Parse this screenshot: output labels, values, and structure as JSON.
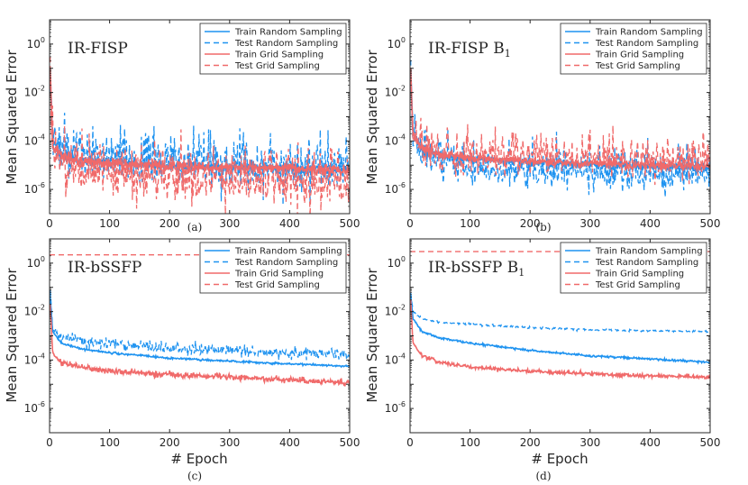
{
  "figure": {
    "ylabel": "Mean Squared Error",
    "xlabel": "# Epoch",
    "colors": {
      "random": "#1f93f0",
      "grid": "#f06a6a",
      "axis": "#262626"
    }
  },
  "chart_data": [
    {
      "type": "line",
      "panel": "a",
      "sublabel": "(a)",
      "title": "IR-FISP",
      "title_sub": "",
      "xlim": [
        0,
        500
      ],
      "xticks": [
        0,
        100,
        200,
        300,
        400,
        500
      ],
      "ylim_log10": [
        -7,
        1
      ],
      "yticks_exp": [
        -6,
        -4,
        -2,
        0
      ],
      "show_xlabel": false,
      "legend": [
        "Train Random Sampling",
        "Test Random Sampling",
        "Train Grid Sampling",
        "Test Grid Sampling"
      ],
      "series": [
        {
          "name": "Train Random Sampling",
          "color": "random",
          "dash": "",
          "x": [
            1,
            5,
            20,
            50,
            100,
            200,
            300,
            400,
            500
          ],
          "values": [
            0.06,
            0.0001,
            2.5e-05,
            1.7e-05,
            1.3e-05,
            1e-05,
            8.5e-06,
            7.5e-06,
            6.5e-06
          ],
          "noise": 0.08
        },
        {
          "name": "Test Random Sampling",
          "color": "random",
          "dash": "6,4",
          "x": [
            1,
            5,
            20,
            50,
            100,
            200,
            300,
            400,
            500
          ],
          "values": [
            0.08,
            0.0001,
            3e-05,
            2e-05,
            1.6e-05,
            1.2e-05,
            1e-05,
            8e-06,
            7e-06
          ],
          "noise": 0.45
        },
        {
          "name": "Train Grid Sampling",
          "color": "grid",
          "dash": "",
          "x": [
            1,
            5,
            20,
            50,
            100,
            200,
            300,
            400,
            500
          ],
          "values": [
            0.08,
            8e-05,
            2e-05,
            1.5e-05,
            1.2e-05,
            9.5e-06,
            8e-06,
            7e-06,
            6e-06
          ],
          "noise": 0.12
        },
        {
          "name": "Test Grid Sampling",
          "color": "grid",
          "dash": "6,4",
          "x": [
            1,
            5,
            20,
            50,
            100,
            200,
            300,
            400,
            500
          ],
          "values": [
            0.1,
            6e-05,
            1.2e-05,
            6e-06,
            4e-06,
            3e-06,
            2.5e-06,
            2.2e-06,
            2e-06
          ],
          "noise": 0.5
        }
      ]
    },
    {
      "type": "line",
      "panel": "b",
      "sublabel": "(b)",
      "title": "IR-FISP B",
      "title_sub": "1",
      "xlim": [
        0,
        500
      ],
      "xticks": [
        0,
        100,
        200,
        300,
        400,
        500
      ],
      "ylim_log10": [
        -7,
        1
      ],
      "yticks_exp": [
        -6,
        -4,
        -2,
        0
      ],
      "show_xlabel": false,
      "legend": [
        "Train Random Sampling",
        "Test Random Sampling",
        "Train Grid Sampling",
        "Test Grid Sampling"
      ],
      "series": [
        {
          "name": "Train Random Sampling",
          "color": "random",
          "dash": "",
          "x": [
            1,
            5,
            20,
            50,
            100,
            200,
            300,
            400,
            500
          ],
          "values": [
            0.1,
            0.0002,
            4e-05,
            2.5e-05,
            1.8e-05,
            1.3e-05,
            1.1e-05,
            9e-06,
            8e-06
          ],
          "noise": 0.08
        },
        {
          "name": "Test Random Sampling",
          "color": "random",
          "dash": "6,4",
          "x": [
            1,
            5,
            20,
            50,
            100,
            200,
            300,
            400,
            500
          ],
          "values": [
            0.1,
            0.00015,
            3e-05,
            1.6e-05,
            9e-06,
            6e-06,
            5e-06,
            4.5e-06,
            4e-06
          ],
          "noise": 0.35
        },
        {
          "name": "Train Grid Sampling",
          "color": "grid",
          "dash": "",
          "x": [
            1,
            5,
            20,
            50,
            100,
            200,
            300,
            400,
            500
          ],
          "values": [
            0.1,
            0.0002,
            4.5e-05,
            2.8e-05,
            2e-05,
            1.5e-05,
            1.2e-05,
            1e-05,
            9e-06
          ],
          "noise": 0.08
        },
        {
          "name": "Test Grid Sampling",
          "color": "grid",
          "dash": "6,4",
          "x": [
            1,
            5,
            20,
            50,
            100,
            200,
            300,
            400,
            500
          ],
          "values": [
            0.1,
            0.0002,
            5e-05,
            3e-05,
            2.5e-05,
            2e-05,
            1.8e-05,
            1.6e-05,
            1.5e-05
          ],
          "noise": 0.35
        }
      ]
    },
    {
      "type": "line",
      "panel": "c",
      "sublabel": "(c)",
      "title": "IR-bSSFP",
      "title_sub": "",
      "xlim": [
        0,
        500
      ],
      "xticks": [
        0,
        100,
        200,
        300,
        400,
        500
      ],
      "ylim_log10": [
        -7,
        1
      ],
      "yticks_exp": [
        -6,
        -4,
        -2,
        0
      ],
      "show_xlabel": true,
      "legend": [
        "Train Random Sampling",
        "Test Random Sampling",
        "Train Grid Sampling",
        "Test Grid Sampling"
      ],
      "series": [
        {
          "name": "Train Random Sampling",
          "color": "random",
          "dash": "",
          "x": [
            1,
            5,
            20,
            50,
            100,
            200,
            300,
            400,
            500
          ],
          "values": [
            0.05,
            0.0015,
            0.0005,
            0.0003,
            0.0002,
            0.00012,
            9e-05,
            7e-05,
            5.5e-05
          ],
          "noise": 0.02
        },
        {
          "name": "Test Random Sampling",
          "color": "random",
          "dash": "6,4",
          "x": [
            1,
            5,
            20,
            50,
            100,
            200,
            300,
            400,
            500
          ],
          "values": [
            0.06,
            0.002,
            0.0009,
            0.0006,
            0.0005,
            0.0003,
            0.00025,
            0.0002,
            0.00018
          ],
          "noise": 0.12
        },
        {
          "name": "Train Grid Sampling",
          "color": "grid",
          "dash": "",
          "x": [
            1,
            5,
            20,
            50,
            100,
            200,
            300,
            400,
            500
          ],
          "values": [
            0.02,
            0.0002,
            8e-05,
            5e-05,
            3.5e-05,
            2.5e-05,
            2e-05,
            1.5e-05,
            1.2e-05
          ],
          "noise": 0.06
        },
        {
          "name": "Test Grid Sampling",
          "color": "grid",
          "dash": "6,4",
          "x": [
            0,
            500
          ],
          "values": [
            2.2,
            2.2
          ],
          "noise": 0
        }
      ]
    },
    {
      "type": "line",
      "panel": "d",
      "sublabel": "(d)",
      "title": "IR-bSSFP B",
      "title_sub": "1",
      "xlim": [
        0,
        500
      ],
      "xticks": [
        0,
        100,
        200,
        300,
        400,
        500
      ],
      "ylim_log10": [
        -7,
        1
      ],
      "yticks_exp": [
        -6,
        -4,
        -2,
        0
      ],
      "show_xlabel": true,
      "legend": [
        "Train Random Sampling",
        "Test Random Sampling",
        "Train Grid Sampling",
        "Test Grid Sampling"
      ],
      "series": [
        {
          "name": "Train Random Sampling",
          "color": "random",
          "dash": "",
          "x": [
            1,
            5,
            20,
            50,
            100,
            200,
            300,
            400,
            500
          ],
          "values": [
            0.05,
            0.005,
            0.0015,
            0.0008,
            0.0005,
            0.00025,
            0.00015,
            0.00011,
            8e-05
          ],
          "noise": 0.02
        },
        {
          "name": "Test Random Sampling",
          "color": "random",
          "dash": "6,4",
          "x": [
            1,
            5,
            20,
            50,
            100,
            200,
            300,
            400,
            500
          ],
          "values": [
            0.06,
            0.01,
            0.005,
            0.0035,
            0.003,
            0.0022,
            0.0018,
            0.0016,
            0.0015
          ],
          "noise": 0.02
        },
        {
          "name": "Train Grid Sampling",
          "color": "grid",
          "dash": "",
          "x": [
            1,
            5,
            20,
            50,
            100,
            200,
            300,
            400,
            500
          ],
          "values": [
            0.03,
            0.0005,
            0.00015,
            8e-05,
            5e-05,
            3.5e-05,
            2.7e-05,
            2.2e-05,
            2e-05
          ],
          "noise": 0.04
        },
        {
          "name": "Test Grid Sampling",
          "color": "grid",
          "dash": "6,4",
          "x": [
            0,
            500
          ],
          "values": [
            3,
            3
          ],
          "noise": 0
        }
      ]
    }
  ]
}
